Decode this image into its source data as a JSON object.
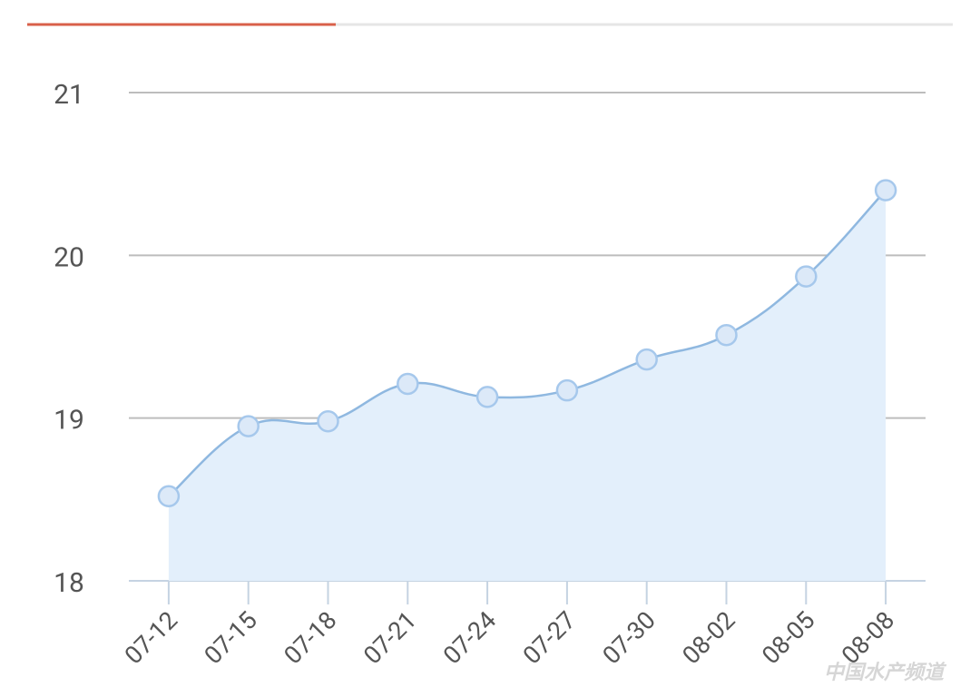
{
  "chart_data": {
    "type": "line",
    "categories": [
      "07-12",
      "07-15",
      "07-18",
      "07-21",
      "07-24",
      "07-27",
      "07-30",
      "08-02",
      "08-05",
      "08-08"
    ],
    "values": [
      18.52,
      18.95,
      18.98,
      19.21,
      19.13,
      19.17,
      19.36,
      19.51,
      19.87,
      20.4
    ],
    "color": "#8fb8e0",
    "area_color": "#e3effb",
    "ylim": [
      18,
      21
    ],
    "yticks": [
      18,
      19,
      20,
      21
    ],
    "grid": true,
    "watermark": "中国水产频道"
  }
}
